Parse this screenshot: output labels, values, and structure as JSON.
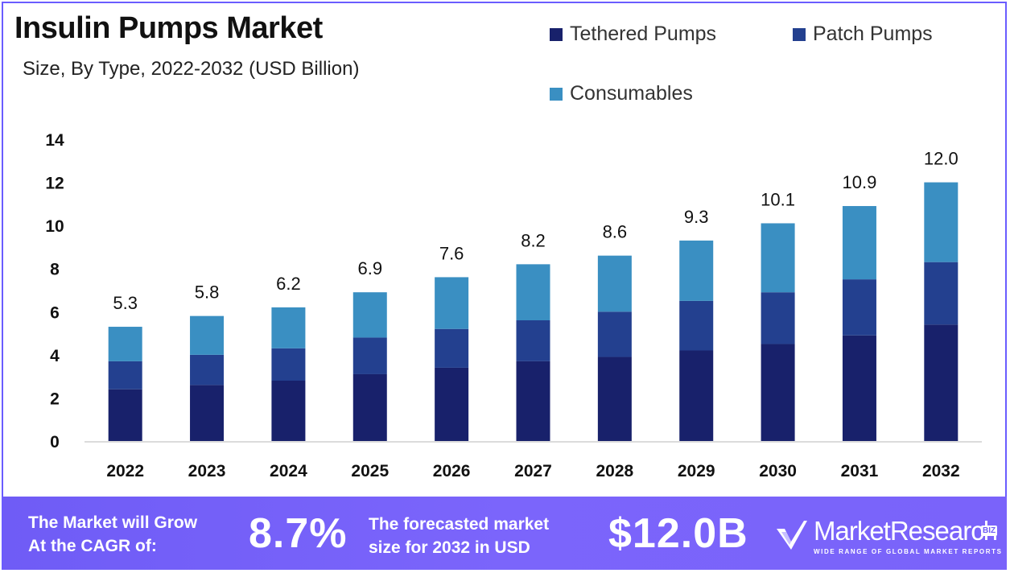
{
  "title": "Insulin Pumps Market",
  "subtitle": "Size, By Type, 2022-2032 (USD Billion)",
  "colors": {
    "tethered": "#18216b",
    "patch": "#23408f",
    "consumables": "#3a8fc2",
    "accent": "#6f5cf6"
  },
  "legend": [
    {
      "label": "Tethered Pumps",
      "color": "#18216b"
    },
    {
      "label": "Patch Pumps",
      "color": "#23408f"
    },
    {
      "label": "Consumables",
      "color": "#3a8fc2"
    }
  ],
  "chart_data": {
    "type": "bar",
    "stacked": true,
    "categories": [
      "2022",
      "2023",
      "2024",
      "2025",
      "2026",
      "2027",
      "2028",
      "2029",
      "2030",
      "2031",
      "2032"
    ],
    "series": [
      {
        "name": "Tethered Pumps",
        "values": [
          2.4,
          2.6,
          2.8,
          3.1,
          3.4,
          3.7,
          3.9,
          4.2,
          4.5,
          4.9,
          5.4
        ]
      },
      {
        "name": "Patch Pumps",
        "values": [
          1.3,
          1.4,
          1.5,
          1.7,
          1.8,
          1.9,
          2.1,
          2.3,
          2.4,
          2.6,
          2.9
        ]
      },
      {
        "name": "Consumables",
        "values": [
          1.6,
          1.8,
          1.9,
          2.1,
          2.4,
          2.6,
          2.6,
          2.8,
          3.2,
          3.4,
          3.7
        ]
      }
    ],
    "totals": [
      "5.3",
      "5.8",
      "6.2",
      "6.9",
      "7.6",
      "8.2",
      "8.6",
      "9.3",
      "10.1",
      "10.9",
      "12.0"
    ],
    "yticks": [
      "0",
      "2",
      "4",
      "6",
      "8",
      "10",
      "12",
      "14"
    ],
    "ylim": [
      0,
      14
    ],
    "grid": false,
    "legend_position": "top-right"
  },
  "footer": {
    "cagr_text_line1": "The Market will Grow",
    "cagr_text_line2": "At the CAGR of:",
    "cagr_value": "8.7%",
    "forecast_text_line1": "The forecasted market",
    "forecast_text_line2": "size for 2032 in USD",
    "forecast_value": "$12.0B",
    "brand_name": "MarketResearch",
    "brand_suffix": "BIZ",
    "brand_tagline": "WIDE RANGE OF GLOBAL MARKET REPORTS"
  }
}
